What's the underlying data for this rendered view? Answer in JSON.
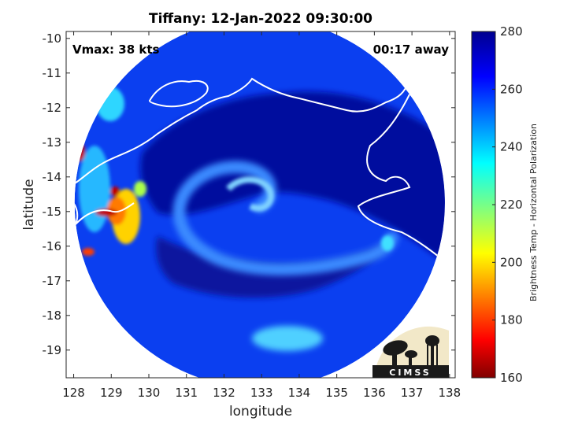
{
  "chart_data": {
    "type": "heatmap",
    "title": "Tiffany: 12-Jan-2022 09:30:00",
    "xlabel": "longitude",
    "ylabel": "latitude",
    "xlim": [
      127.8,
      138.15
    ],
    "ylim": [
      -19.8,
      -9.8
    ],
    "x_ticks": [
      "128",
      "129",
      "130",
      "131",
      "132",
      "133",
      "134",
      "135",
      "136",
      "137",
      "138"
    ],
    "y_ticks": [
      "-10",
      "-11",
      "-12",
      "-13",
      "-14",
      "-15",
      "-16",
      "-17",
      "-18",
      "-19"
    ],
    "grid": false,
    "colorbar": {
      "label": "Brightness Temp - Horizontal Polarization",
      "range": [
        160,
        280
      ],
      "ticks": [
        "280",
        "260",
        "240",
        "220",
        "200",
        "180",
        "160"
      ],
      "colormap": "jet"
    },
    "annotations": {
      "vmax": "Vmax: 38 kts",
      "time_offset": "00:17 away"
    },
    "swath": {
      "center_lon": 132.95,
      "center_lat": -14.75,
      "radius_deg": 5.0,
      "background_temp": 267
    },
    "storm_center": {
      "lon": 133.0,
      "lat": -14.9
    }
  },
  "logo": {
    "text": "CIMSS"
  },
  "colors": {
    "coastline": "#ffffff",
    "axes": "#222222",
    "background": "#ffffff"
  }
}
